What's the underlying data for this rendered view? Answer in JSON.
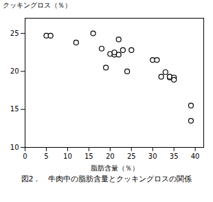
{
  "chart_data": {
    "type": "scatter",
    "x": [
      5,
      6,
      12,
      16,
      18,
      19,
      20,
      21,
      21,
      22,
      22,
      23,
      24,
      25,
      30,
      31,
      32,
      33,
      34,
      34,
      35,
      35,
      39,
      39
    ],
    "y": [
      24.7,
      24.7,
      23.8,
      25.0,
      23.0,
      20.5,
      22.3,
      22.2,
      22.5,
      22.2,
      24.2,
      22.8,
      20.0,
      22.8,
      21.5,
      21.5,
      19.3,
      19.9,
      19.2,
      19.3,
      19.2,
      18.9,
      15.5,
      13.5
    ],
    "xlabel": "脂肪含量（％）",
    "ylabel": "クッキングロス（％）",
    "caption": "図2．　牛肉中の脂肪含量とクッキングロスの関係",
    "xlim": [
      0,
      42
    ],
    "ylim": [
      10,
      27
    ],
    "xticks": [
      0,
      5,
      10,
      15,
      20,
      25,
      30,
      35,
      40
    ],
    "yticks": [
      10,
      15,
      20,
      25
    ],
    "color": "black",
    "marker": "open circle",
    "grid": false
  }
}
